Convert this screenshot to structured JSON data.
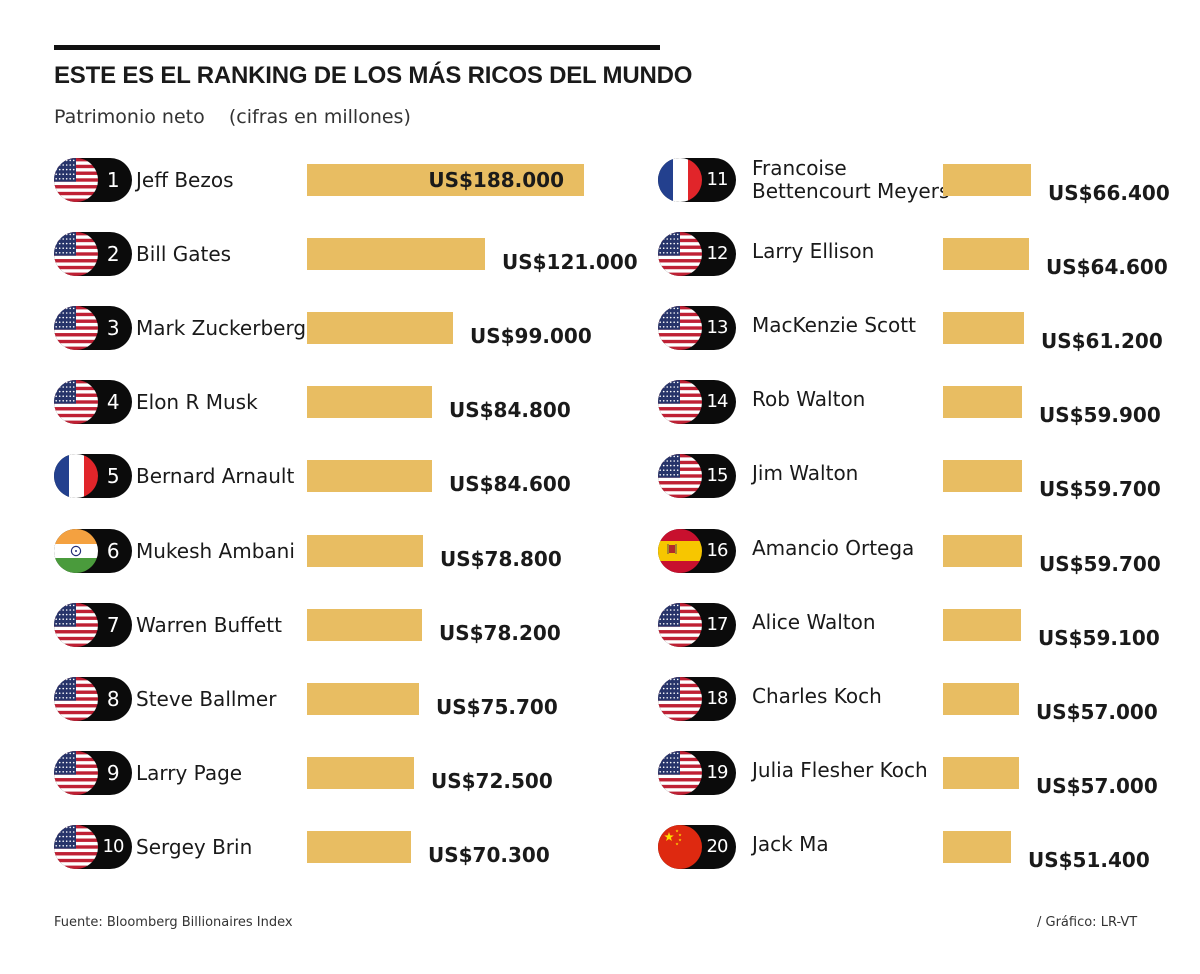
{
  "title": "ESTE ES EL RANKING DE LOS MÁS RICOS DEL MUNDO",
  "subtitle": "Patrimonio neto    (cifras en millones)",
  "source": "Fuente: Bloomberg Billionaires Index",
  "credit": "/ Gráfico: LR-VT",
  "colors": {
    "bar": "#e8bd62",
    "pill": "#0b0b0b",
    "rule": "#111111"
  },
  "chart_data": {
    "type": "bar",
    "orientation": "horizontal",
    "title": "ESTE ES EL RANKING DE LOS MÁS RICOS DEL MUNDO",
    "subtitle": "Patrimonio neto    (cifras en millones)",
    "unit": "US$ millones",
    "legend": "none",
    "grid": false,
    "columns": 2,
    "items": [
      {
        "rank": "1",
        "name": "Jeff Bezos",
        "country": "us",
        "value": 188000,
        "label": "US$188.000"
      },
      {
        "rank": "2",
        "name": "Bill Gates",
        "country": "us",
        "value": 121000,
        "label": "US$121.000"
      },
      {
        "rank": "3",
        "name": "Mark Zuckerberg",
        "country": "us",
        "value": 99000,
        "label": "US$99.000"
      },
      {
        "rank": "4",
        "name": "Elon R Musk",
        "country": "us",
        "value": 84800,
        "label": "US$84.800"
      },
      {
        "rank": "5",
        "name": "Bernard Arnault",
        "country": "fr",
        "value": 84600,
        "label": "US$84.600"
      },
      {
        "rank": "6",
        "name": "Mukesh Ambani",
        "country": "in",
        "value": 78800,
        "label": "US$78.800"
      },
      {
        "rank": "7",
        "name": "Warren Buffett",
        "country": "us",
        "value": 78200,
        "label": "US$78.200"
      },
      {
        "rank": "8",
        "name": "Steve Ballmer",
        "country": "us",
        "value": 75700,
        "label": "US$75.700"
      },
      {
        "rank": "9",
        "name": "Larry Page",
        "country": "us",
        "value": 72500,
        "label": "US$72.500"
      },
      {
        "rank": "10",
        "name": "Sergey Brin",
        "country": "us",
        "value": 70300,
        "label": "US$70.300"
      },
      {
        "rank": "11",
        "name": "Francoise Bettencourt Meyers",
        "name_lines": [
          "Francoise",
          "Bettencourt Meyers"
        ],
        "country": "fr",
        "value": 66400,
        "label": "US$66.400"
      },
      {
        "rank": "12",
        "name": "Larry Ellison",
        "country": "us",
        "value": 64600,
        "label": "US$64.600"
      },
      {
        "rank": "13",
        "name": "MacKenzie Scott",
        "country": "us",
        "value": 61200,
        "label": "US$61.200"
      },
      {
        "rank": "14",
        "name": "Rob Walton",
        "country": "us",
        "value": 59900,
        "label": "US$59.900"
      },
      {
        "rank": "15",
        "name": "Jim Walton",
        "country": "us",
        "value": 59700,
        "label": "US$59.700"
      },
      {
        "rank": "16",
        "name": "Amancio Ortega",
        "country": "es",
        "value": 59700,
        "label": "US$59.700"
      },
      {
        "rank": "17",
        "name": "Alice Walton",
        "country": "us",
        "value": 59100,
        "label": "US$59.100"
      },
      {
        "rank": "18",
        "name": "Charles Koch",
        "country": "us",
        "value": 57000,
        "label": "US$57.000"
      },
      {
        "rank": "19",
        "name": "Julia Flesher Koch",
        "country": "us",
        "value": 57000,
        "label": "US$57.000"
      },
      {
        "rank": "20",
        "name": "Jack Ma",
        "country": "cn",
        "value": 51400,
        "label": "US$51.400"
      }
    ]
  }
}
